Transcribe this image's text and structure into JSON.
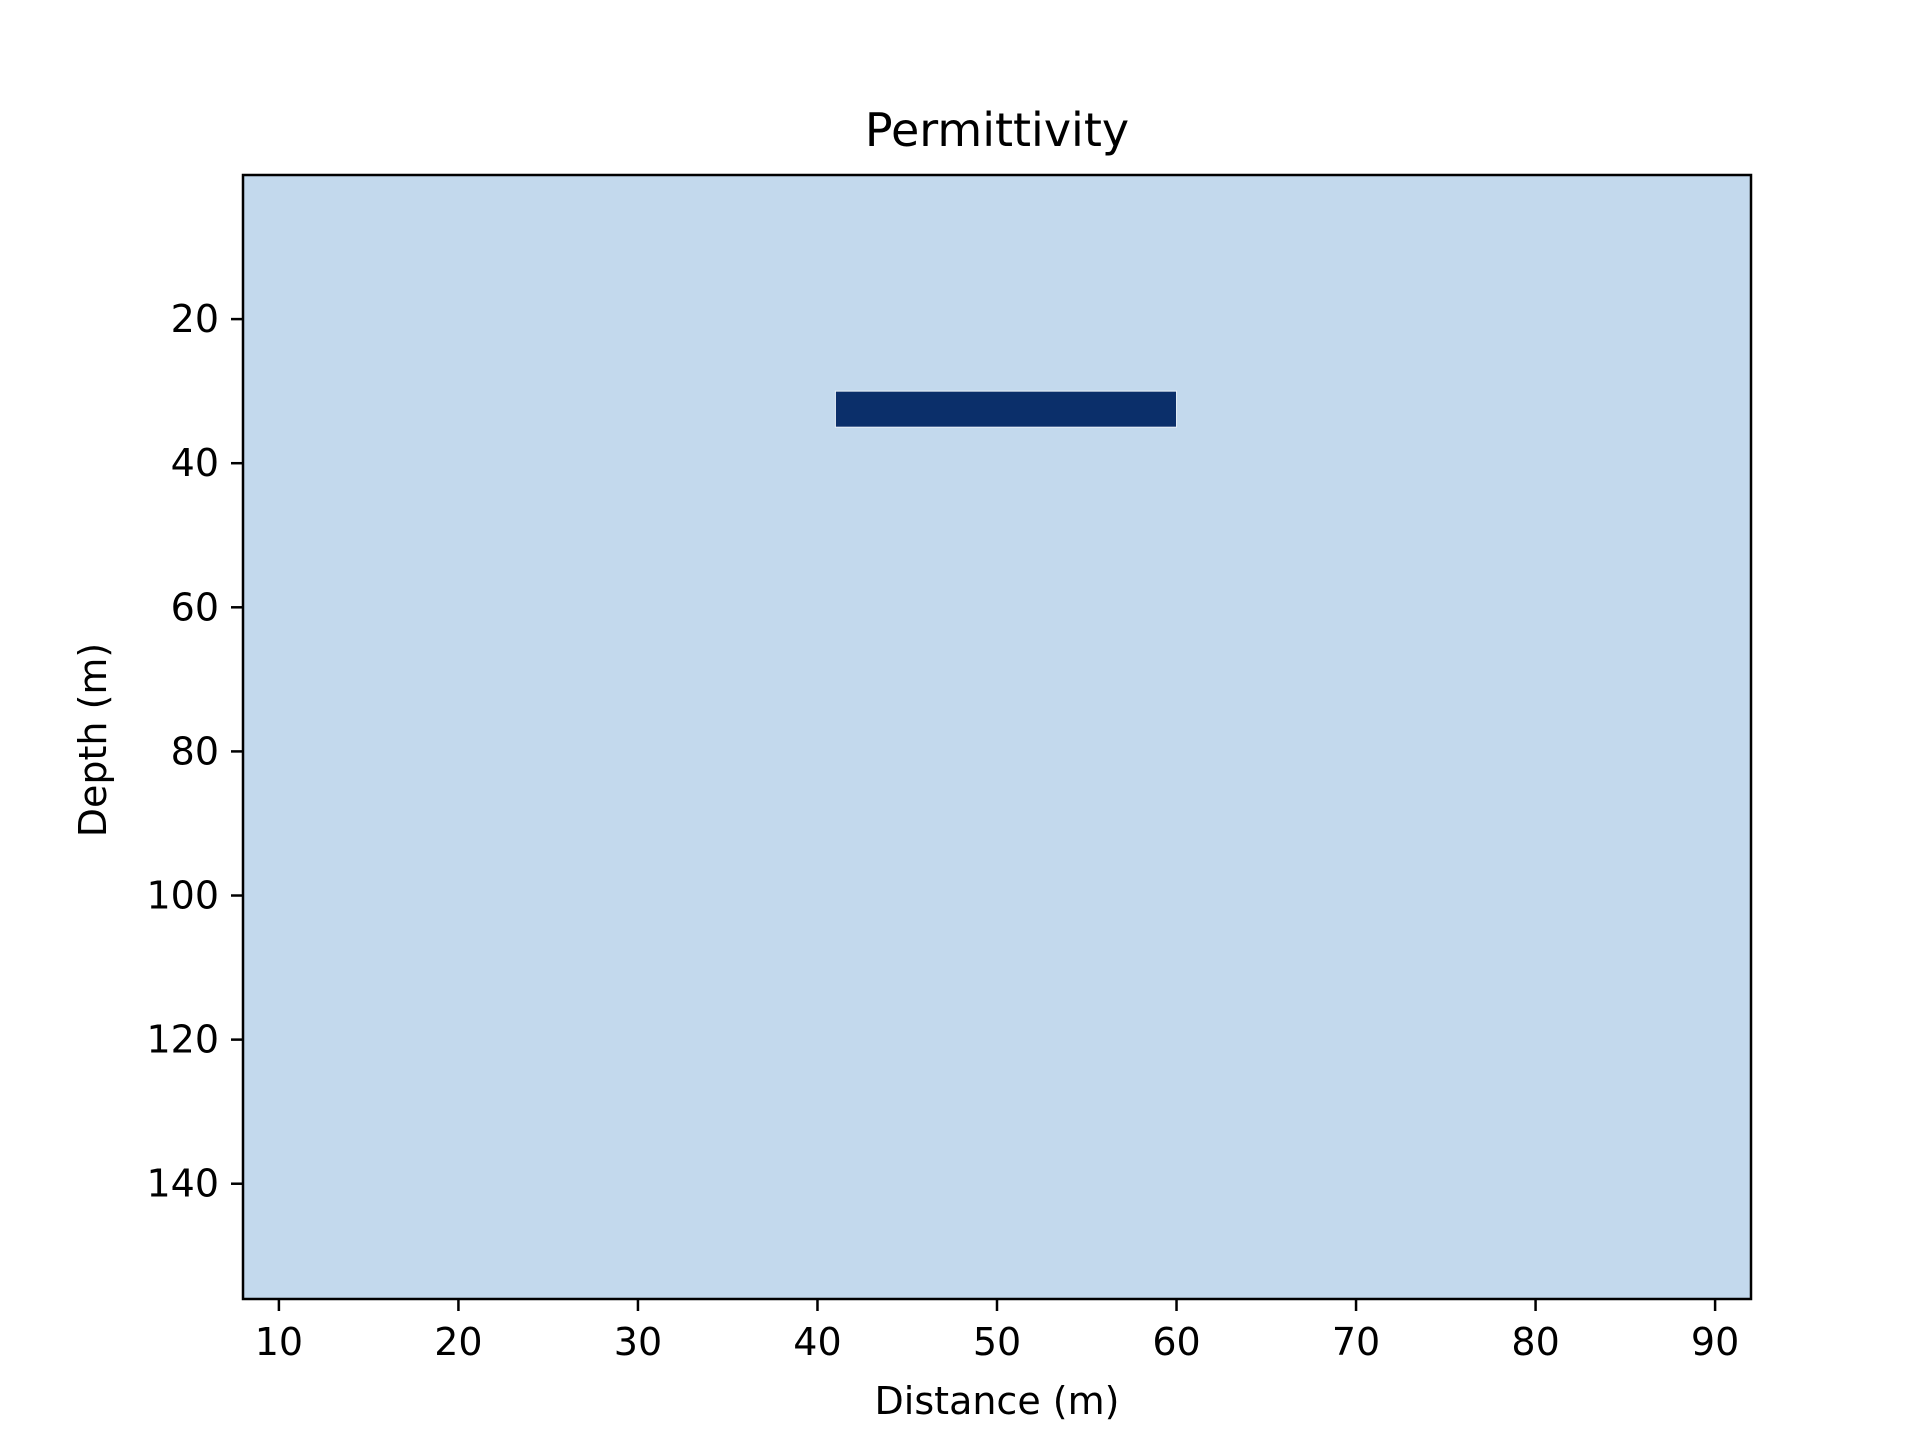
{
  "chart_data": {
    "type": "heatmap",
    "title": "Permittivity",
    "xlabel": "Distance (m)",
    "ylabel": "Depth (m)",
    "xlim": [
      8,
      92
    ],
    "ylim": [
      156,
      0
    ],
    "y_inverted": true,
    "grid": false,
    "legend": "none",
    "x_ticks": [
      10,
      20,
      30,
      40,
      50,
      60,
      70,
      80,
      90
    ],
    "y_ticks": [
      20,
      40,
      60,
      80,
      100,
      120,
      140
    ],
    "background": {
      "color": "#c3d9ed"
    },
    "anomalies": [
      {
        "x_start": 41,
        "x_end": 60,
        "depth_top": 30,
        "depth_bottom": 35,
        "color": "#0b2f6a"
      }
    ]
  }
}
